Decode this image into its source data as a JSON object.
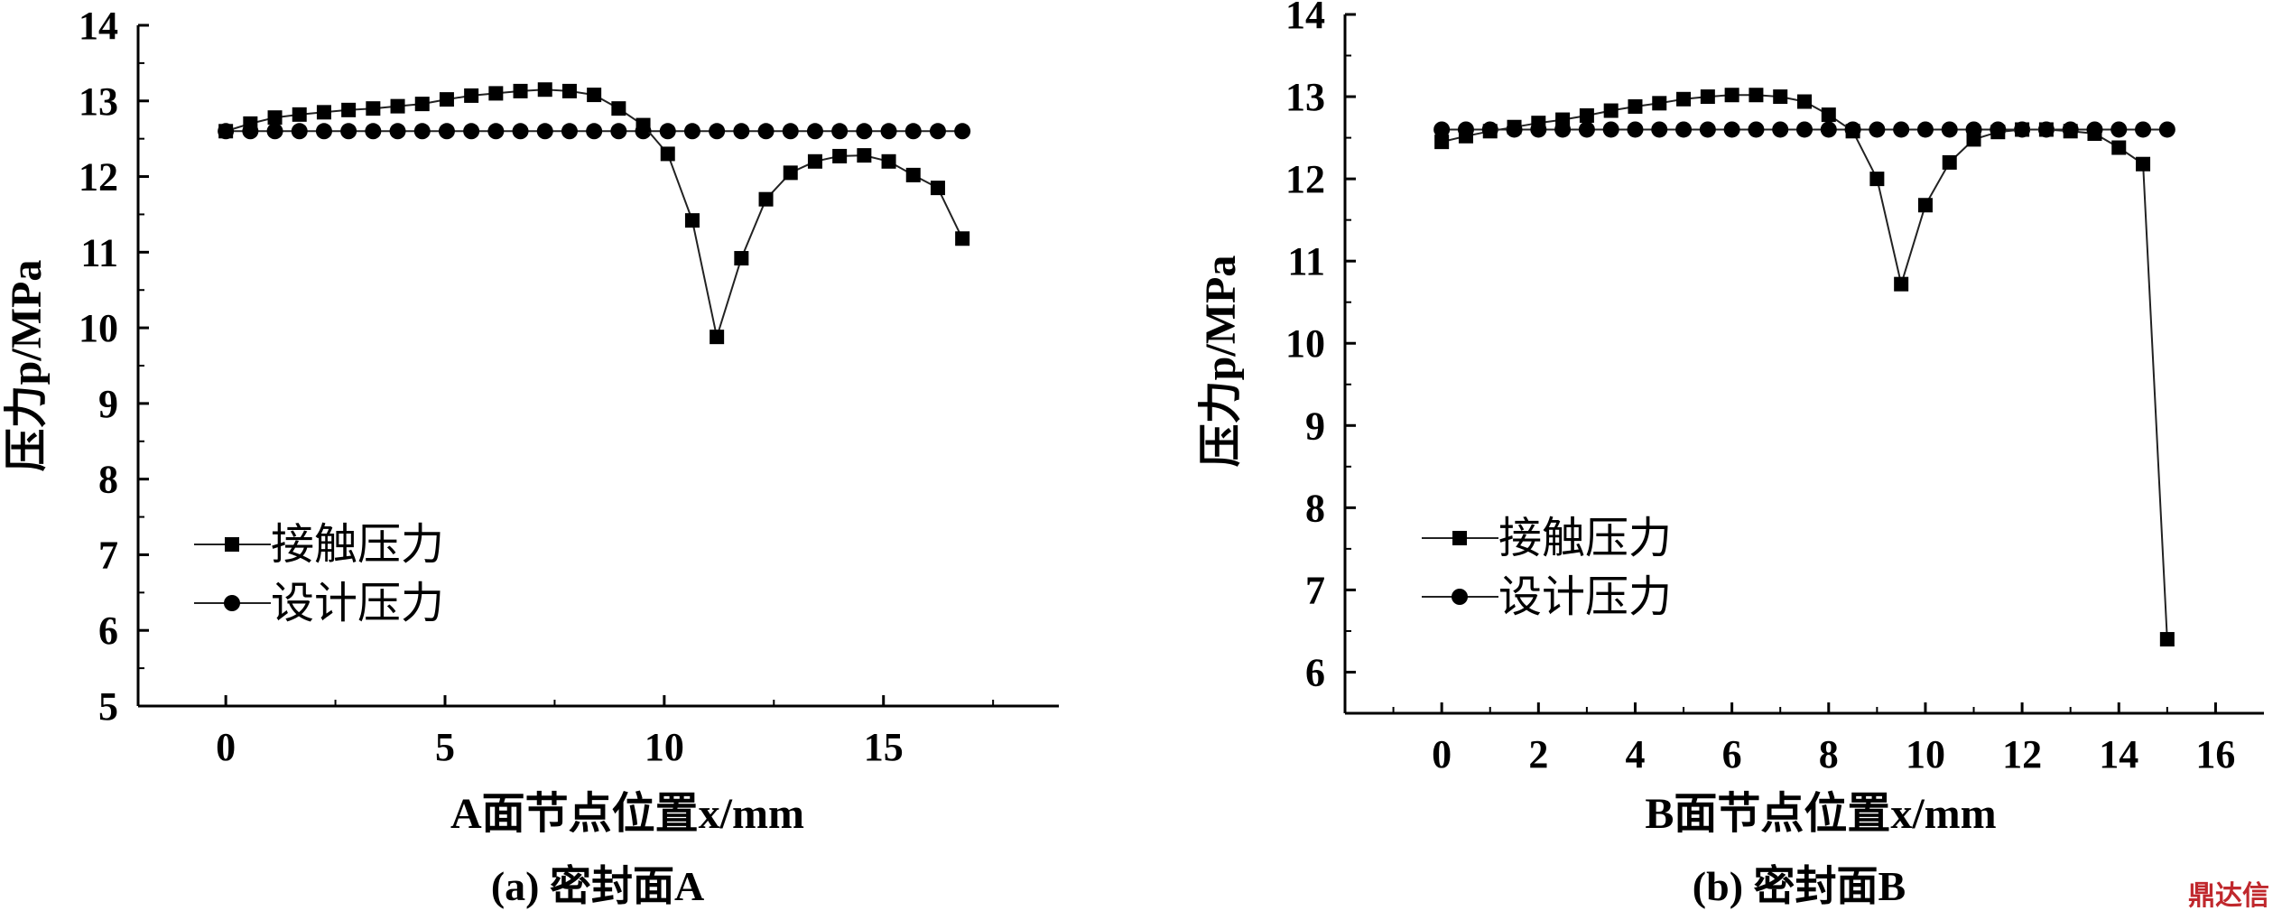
{
  "watermark": "鼎达信",
  "chart_data": [
    {
      "type": "line",
      "caption": "(a) 密封面A",
      "xlabel": "A面节点位置x/mm",
      "ylabel": "压力p/MPa",
      "xlim": [
        -2,
        19
      ],
      "ylim": [
        5,
        14
      ],
      "xticks": [
        0,
        5,
        10,
        15
      ],
      "yticks": [
        5,
        6,
        7,
        8,
        9,
        10,
        11,
        12,
        13,
        14
      ],
      "legend": "lower-left",
      "series": [
        {
          "name": "接触压力",
          "marker": "square",
          "x": [
            0,
            0.56,
            1.12,
            1.68,
            2.24,
            2.8,
            3.36,
            3.92,
            4.48,
            5.04,
            5.6,
            6.16,
            6.72,
            7.28,
            7.84,
            8.4,
            8.96,
            9.52,
            10.08,
            10.64,
            11.2,
            11.76,
            12.32,
            12.88,
            13.44,
            14.0,
            14.56,
            15.12,
            15.68,
            16.24,
            16.8
          ],
          "y": [
            12.6,
            12.7,
            12.78,
            12.82,
            12.85,
            12.88,
            12.9,
            12.93,
            12.96,
            13.02,
            13.07,
            13.1,
            13.13,
            13.15,
            13.13,
            13.08,
            12.9,
            12.68,
            12.3,
            11.42,
            9.88,
            10.92,
            11.7,
            12.05,
            12.2,
            12.27,
            12.28,
            12.2,
            12.02,
            11.85,
            11.18
          ]
        },
        {
          "name": "设计压力",
          "marker": "circle",
          "x": [
            0,
            0.56,
            1.12,
            1.68,
            2.24,
            2.8,
            3.36,
            3.92,
            4.48,
            5.04,
            5.6,
            6.16,
            6.72,
            7.28,
            7.84,
            8.4,
            8.96,
            9.52,
            10.08,
            10.64,
            11.2,
            11.76,
            12.32,
            12.88,
            13.44,
            14.0,
            14.56,
            15.12,
            15.68,
            16.24,
            16.8
          ],
          "y": [
            12.6,
            12.6,
            12.6,
            12.6,
            12.6,
            12.6,
            12.6,
            12.6,
            12.6,
            12.6,
            12.6,
            12.6,
            12.6,
            12.6,
            12.6,
            12.6,
            12.6,
            12.6,
            12.6,
            12.6,
            12.6,
            12.6,
            12.6,
            12.6,
            12.6,
            12.6,
            12.6,
            12.6,
            12.6,
            12.6,
            12.6
          ]
        }
      ]
    },
    {
      "type": "line",
      "caption": "(b) 密封面B",
      "xlabel": "B面节点位置x/mm",
      "ylabel": "压力p/MPa",
      "xlim": [
        -2,
        17
      ],
      "ylim": [
        5.5,
        14
      ],
      "xticks": [
        0,
        2,
        4,
        6,
        8,
        10,
        12,
        14,
        16
      ],
      "yticks": [
        6,
        7,
        8,
        9,
        10,
        11,
        12,
        13,
        14
      ],
      "legend": "lower-left",
      "series": [
        {
          "name": "接触压力",
          "marker": "square",
          "x": [
            0,
            0.5,
            1.0,
            1.5,
            2.0,
            2.5,
            3.0,
            3.5,
            4.0,
            4.5,
            5.0,
            5.5,
            6.0,
            6.5,
            7.0,
            7.5,
            8.0,
            8.5,
            9.0,
            9.5,
            10.0,
            10.5,
            11.0,
            11.5,
            12.0,
            12.5,
            13.0,
            13.5,
            14.0,
            14.5,
            15.0
          ],
          "y": [
            12.45,
            12.52,
            12.58,
            12.63,
            12.68,
            12.72,
            12.77,
            12.83,
            12.88,
            12.92,
            12.97,
            13.0,
            13.02,
            13.02,
            13.0,
            12.94,
            12.78,
            12.58,
            12.0,
            10.72,
            11.68,
            12.2,
            12.48,
            12.57,
            12.6,
            12.6,
            12.58,
            12.55,
            12.38,
            12.18,
            6.4
          ]
        },
        {
          "name": "设计压力",
          "marker": "circle",
          "x": [
            0,
            0.5,
            1.0,
            1.5,
            2.0,
            2.5,
            3.0,
            3.5,
            4.0,
            4.5,
            5.0,
            5.5,
            6.0,
            6.5,
            7.0,
            7.5,
            8.0,
            8.5,
            9.0,
            9.5,
            10.0,
            10.5,
            11.0,
            11.5,
            12.0,
            12.5,
            13.0,
            13.5,
            14.0,
            14.5,
            15.0
          ],
          "y": [
            12.6,
            12.6,
            12.6,
            12.6,
            12.6,
            12.6,
            12.6,
            12.6,
            12.6,
            12.6,
            12.6,
            12.6,
            12.6,
            12.6,
            12.6,
            12.6,
            12.6,
            12.6,
            12.6,
            12.6,
            12.6,
            12.6,
            12.6,
            12.6,
            12.6,
            12.6,
            12.6,
            12.6,
            12.6,
            12.6,
            12.6
          ]
        }
      ]
    }
  ]
}
